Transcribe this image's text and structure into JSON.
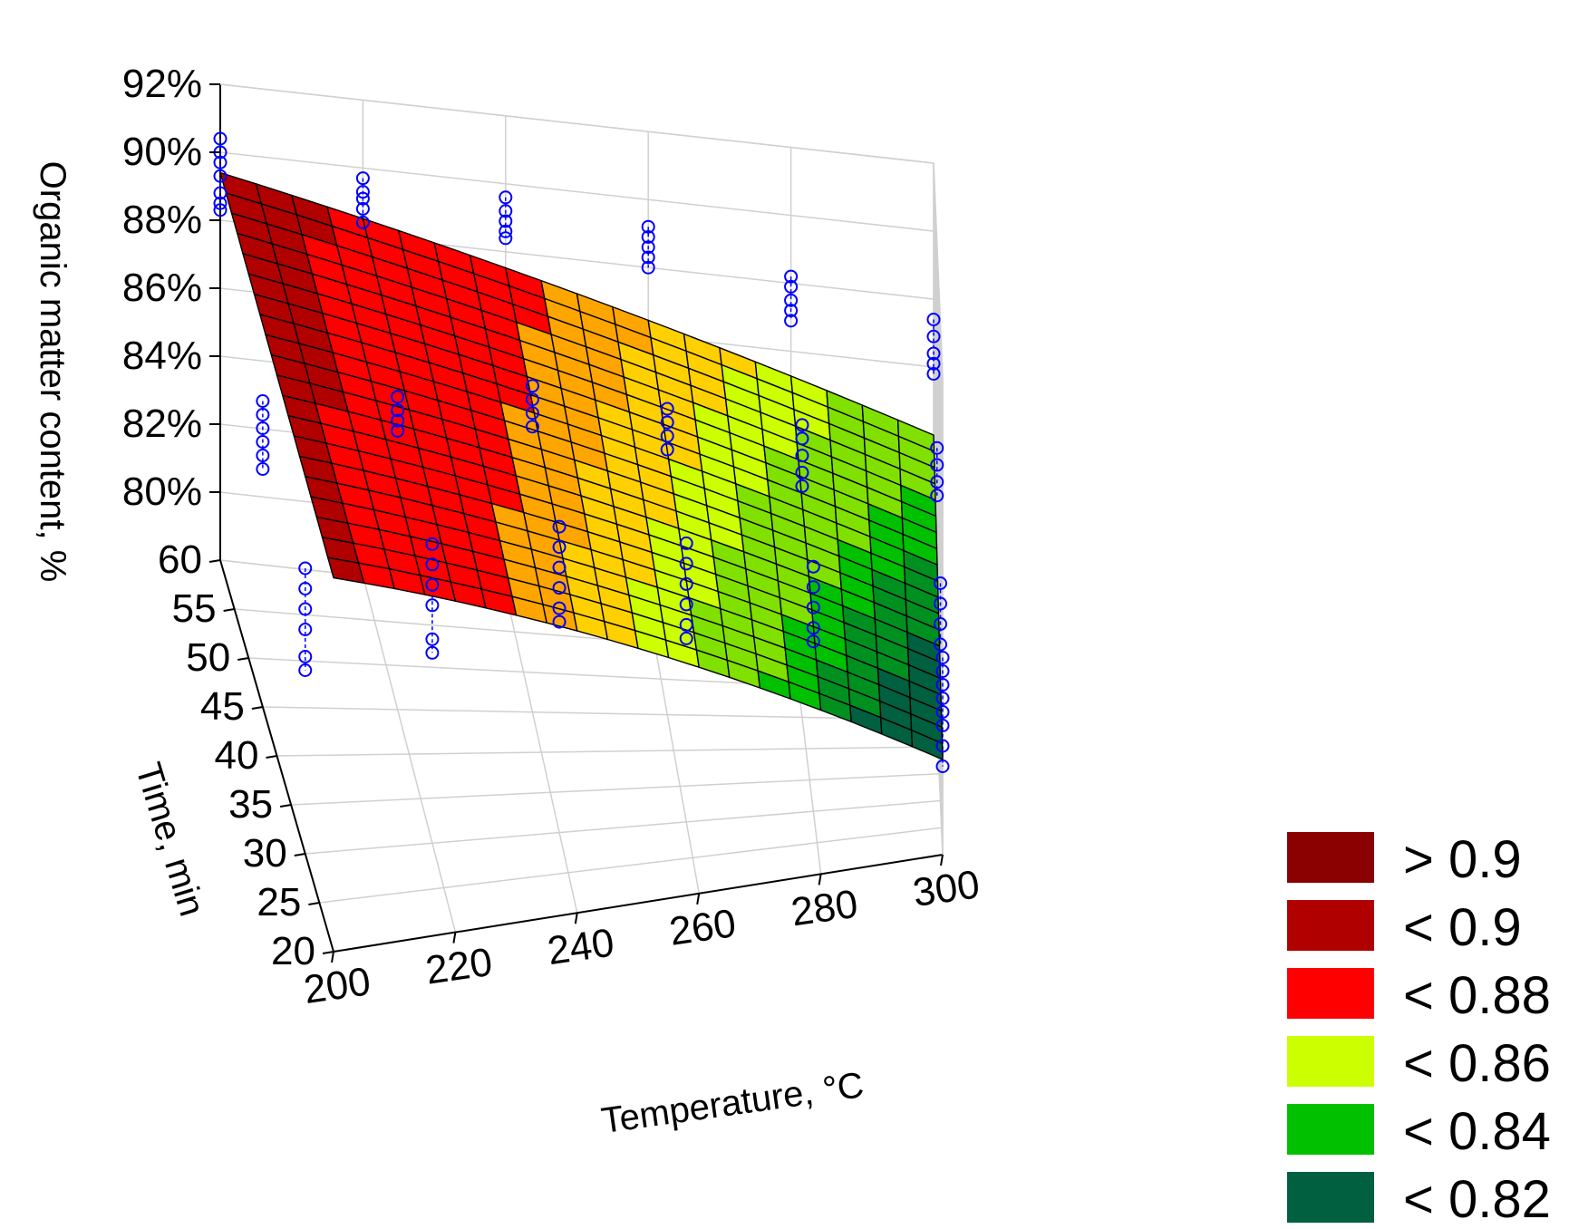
{
  "chart_data": {
    "type": "surface3d",
    "title": "",
    "xlabel": "Temperature, °C",
    "ylabel": "Time, min",
    "zlabel": "Organic matter content, %",
    "xlim": [
      200,
      300
    ],
    "ylim": [
      20,
      60
    ],
    "zlim": [
      78,
      92
    ],
    "x_ticks": [
      "200",
      "220",
      "240",
      "260",
      "280",
      "300"
    ],
    "y_ticks": [
      "20",
      "25",
      "30",
      "35",
      "40",
      "45",
      "50",
      "55",
      "60"
    ],
    "z_ticks": [
      "80%",
      "82%",
      "84%",
      "86%",
      "88%",
      "90%",
      "92%"
    ],
    "grid": true,
    "legend_position": "bottom-right",
    "surface_model": {
      "corners": {
        "t200_m60": 0.894,
        "t300_m60": 0.84,
        "t200_m20": 0.89,
        "t300_m20": 0.82
      }
    },
    "legend": [
      {
        "label": "> 0.9",
        "color": "#8b0000"
      },
      {
        "label": "< 0.9",
        "color": "#b00000"
      },
      {
        "label": "< 0.88",
        "color": "#ff0000"
      },
      {
        "label": "< 0.86",
        "color": "#ccff00"
      },
      {
        "label": "< 0.84",
        "color": "#00c000"
      },
      {
        "label": "< 0.82",
        "color": "#006040"
      }
    ],
    "observed_points": [
      {
        "temperature": 200,
        "time": 60,
        "values": [
          0.904,
          0.9,
          0.897,
          0.893,
          0.888,
          0.885,
          0.883
        ]
      },
      {
        "temperature": 220,
        "time": 60,
        "values": [
          0.897,
          0.893,
          0.891,
          0.888,
          0.884
        ]
      },
      {
        "temperature": 240,
        "time": 60,
        "values": [
          0.896,
          0.892,
          0.889,
          0.886,
          0.884
        ]
      },
      {
        "temperature": 260,
        "time": 60,
        "values": [
          0.892,
          0.889,
          0.886,
          0.883,
          0.88
        ]
      },
      {
        "temperature": 280,
        "time": 60,
        "values": [
          0.882,
          0.879,
          0.875,
          0.872,
          0.869
        ]
      },
      {
        "temperature": 300,
        "time": 60,
        "values": [
          0.874,
          0.869,
          0.864,
          0.861,
          0.858
        ]
      },
      {
        "temperature": 200,
        "time": 45,
        "values": [
          0.87,
          0.866,
          0.862,
          0.858,
          0.854,
          0.85
        ]
      },
      {
        "temperature": 220,
        "time": 45,
        "values": [
          0.872,
          0.868,
          0.865,
          0.862
        ]
      },
      {
        "temperature": 240,
        "time": 45,
        "values": [
          0.876,
          0.872,
          0.868,
          0.864
        ]
      },
      {
        "temperature": 260,
        "time": 45,
        "values": [
          0.87,
          0.866,
          0.862,
          0.858
        ]
      },
      {
        "temperature": 280,
        "time": 45,
        "values": [
          0.866,
          0.862,
          0.857,
          0.852,
          0.848
        ]
      },
      {
        "temperature": 300,
        "time": 45,
        "values": [
          0.86,
          0.855,
          0.85,
          0.846
        ]
      },
      {
        "temperature": 200,
        "time": 30,
        "values": [
          0.864,
          0.858,
          0.852,
          0.846,
          0.838,
          0.834
        ]
      },
      {
        "temperature": 220,
        "time": 30,
        "values": [
          0.868,
          0.862,
          0.856,
          0.85,
          0.84,
          0.836
        ]
      },
      {
        "temperature": 240,
        "time": 30,
        "values": [
          0.87,
          0.864,
          0.858,
          0.852,
          0.846,
          0.842
        ]
      },
      {
        "temperature": 260,
        "time": 30,
        "values": [
          0.862,
          0.856,
          0.85,
          0.844,
          0.838,
          0.834
        ]
      },
      {
        "temperature": 280,
        "time": 30,
        "values": [
          0.852,
          0.846,
          0.84,
          0.834,
          0.83
        ]
      },
      {
        "temperature": 300,
        "time": 30,
        "values": [
          0.844,
          0.838,
          0.832,
          0.826
        ]
      },
      {
        "temperature": 300,
        "time": 20,
        "values": [
          0.838,
          0.834,
          0.83,
          0.826,
          0.822,
          0.818,
          0.812,
          0.806
        ]
      }
    ]
  }
}
